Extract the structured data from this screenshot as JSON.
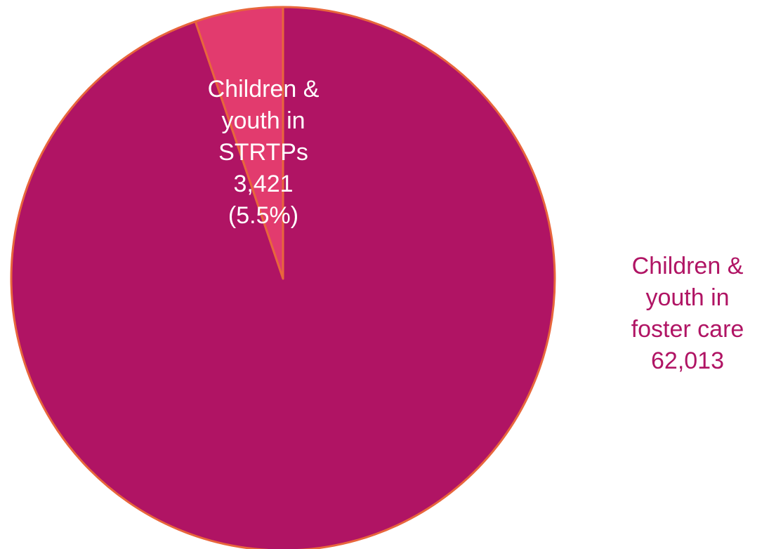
{
  "colors": {
    "background": "#ffffff",
    "foster_care": "#B01464",
    "strtp": "#E23B6E",
    "slice_outline": "#E8663C",
    "label_inside": "#ffffff",
    "label_outside": "#B01464"
  },
  "chart_data": {
    "type": "pie",
    "start_direction": "twelve-o-clock",
    "rotation": "counter-clockwise",
    "slices": [
      {
        "key": "strtp",
        "label_lines": [
          "Children &",
          "youth in",
          "STRTPs",
          "3,421",
          "(5.5%)"
        ],
        "value": 3421,
        "percent": 5.5,
        "label_position": "inside"
      },
      {
        "key": "foster_care",
        "label_lines": [
          "Children &",
          "youth in",
          "foster care",
          "62,013"
        ],
        "value": 62013,
        "label_position": "outside-right"
      }
    ]
  }
}
